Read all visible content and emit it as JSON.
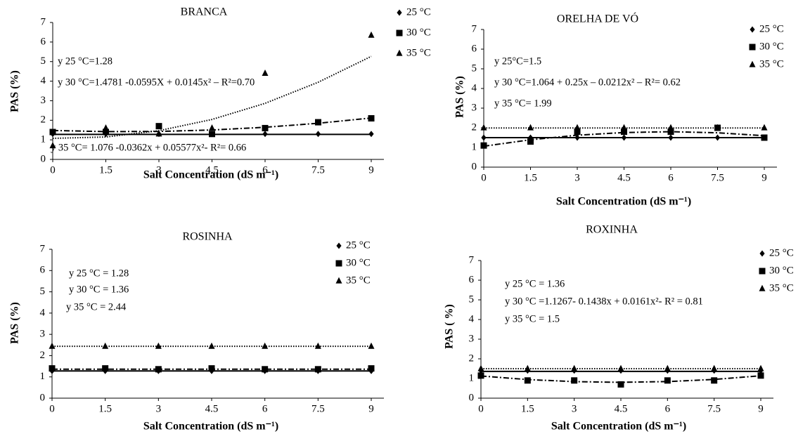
{
  "chart_data": [
    {
      "type": "scatter",
      "title": "BRANCA",
      "x_label": "Salt Concentration (dS m⁻¹)",
      "y_label": "PAS (%)",
      "x": [
        0,
        1.5,
        3,
        4.5,
        6,
        7.5,
        9
      ],
      "xlim": [
        0,
        9
      ],
      "xticks": [
        0,
        1.5,
        3,
        4.5,
        6,
        7.5,
        9
      ],
      "ylim": [
        0,
        7
      ],
      "yticks": [
        0,
        1,
        2,
        3,
        4,
        5,
        6,
        7
      ],
      "series": [
        {
          "name": "25 °C",
          "color": "#000000",
          "marker": "diamond",
          "line_style": "solid",
          "values": [
            1.3,
            1.3,
            1.3,
            1.3,
            1.3,
            1.3,
            1.3
          ],
          "fit": [
            1.28,
            1.28,
            1.28,
            1.28,
            1.28,
            1.28,
            1.28
          ]
        },
        {
          "name": "30 °C",
          "color": "#000000",
          "marker": "square",
          "line_style": "dashdot",
          "values": [
            1.4,
            1.4,
            1.7,
            1.3,
            1.6,
            1.9,
            2.1
          ],
          "fit": [
            1.478,
            1.421,
            1.43,
            1.504,
            1.643,
            1.847,
            2.117
          ]
        },
        {
          "name": "35 °C",
          "color": "#000000",
          "marker": "triangle",
          "line_style": "dotted",
          "values": [
            0.7,
            1.6,
            1.3,
            1.6,
            4.4,
            null,
            6.35
          ],
          "fit": [
            1.076,
            1.147,
            1.469,
            2.042,
            2.867,
            3.944,
            5.267
          ]
        }
      ],
      "annotations": [
        "y 25 °C=1.28",
        "y 30 °C=1.4781 -0.0595X + 0.0145x² – R²=0.70",
        "y 35 °C= 1.076 -0.0362x + 0.05577x²- R²= 0.66"
      ]
    },
    {
      "type": "scatter",
      "title": "ORELHA DE VÓ",
      "x_label": "Salt Concentration (dS m⁻¹)",
      "y_label": "PAS (%)",
      "x": [
        0,
        1.5,
        3,
        4.5,
        6,
        7.5,
        9
      ],
      "xlim": [
        0,
        9
      ],
      "xticks": [
        0,
        1.5,
        3,
        4.5,
        6,
        7.5,
        9
      ],
      "ylim": [
        0,
        7
      ],
      "yticks": [
        0,
        1,
        2,
        3,
        4,
        5,
        6,
        7
      ],
      "series": [
        {
          "name": "25 °C",
          "color": "#000000",
          "marker": "diamond",
          "line_style": "solid",
          "values": [
            1.5,
            1.5,
            1.5,
            1.5,
            1.5,
            1.5,
            1.5
          ],
          "fit": [
            1.5,
            1.5,
            1.5,
            1.5,
            1.5,
            1.5,
            1.5
          ]
        },
        {
          "name": "30 °C",
          "color": "#000000",
          "marker": "square",
          "line_style": "dashdot",
          "values": [
            1.1,
            1.3,
            1.8,
            1.8,
            1.8,
            2.0,
            1.5
          ],
          "fit": [
            1.064,
            1.391,
            1.623,
            1.76,
            1.801,
            1.747,
            1.597
          ]
        },
        {
          "name": "35 °C",
          "color": "#000000",
          "marker": "triangle",
          "line_style": "dotted",
          "values": [
            2.0,
            2.0,
            2.0,
            2.0,
            2.0,
            2.0,
            2.0
          ],
          "fit": [
            1.99,
            1.99,
            1.99,
            1.99,
            1.99,
            1.99,
            1.99
          ]
        }
      ],
      "annotations": [
        "y 25°C=1.5",
        "y 30 °C=1.064 + 0.25x – 0.0212x² – R²= 0.62",
        "y 35 °C= 1.99"
      ]
    },
    {
      "type": "scatter",
      "title": "ROSINHA",
      "x_label": "Salt Concentration (dS m⁻¹)",
      "y_label": "PAS (%)",
      "x": [
        0,
        1.5,
        3,
        4.5,
        6,
        7.5,
        9
      ],
      "xlim": [
        0,
        9
      ],
      "xticks": [
        0,
        1.5,
        3,
        4.5,
        6,
        7.5,
        9
      ],
      "ylim": [
        0,
        7
      ],
      "yticks": [
        0,
        1,
        2,
        3,
        4,
        5,
        6,
        7
      ],
      "series": [
        {
          "name": "25 °C",
          "color": "#000000",
          "marker": "diamond",
          "line_style": "solid",
          "values": [
            1.28,
            1.28,
            1.28,
            1.28,
            1.28,
            1.28,
            1.28
          ],
          "fit": [
            1.28,
            1.28,
            1.28,
            1.28,
            1.28,
            1.28,
            1.28
          ]
        },
        {
          "name": "30 °C",
          "color": "#000000",
          "marker": "square",
          "line_style": "dashdot",
          "values": [
            1.4,
            1.4,
            1.36,
            1.4,
            1.36,
            1.36,
            1.4
          ],
          "fit": [
            1.36,
            1.36,
            1.36,
            1.36,
            1.36,
            1.36,
            1.36
          ]
        },
        {
          "name": "35 °C",
          "color": "#000000",
          "marker": "triangle",
          "line_style": "dotted",
          "values": [
            2.44,
            2.44,
            2.44,
            2.44,
            2.44,
            2.44,
            2.44
          ],
          "fit": [
            2.44,
            2.44,
            2.44,
            2.44,
            2.44,
            2.44,
            2.44
          ]
        }
      ],
      "annotations": [
        "y 25  °C = 1.28",
        "y 30  °C = 1.36",
        "y 35  °C = 2.44"
      ]
    },
    {
      "type": "scatter",
      "title": "ROXINHA",
      "x_label": "Salt Concentration (dS m⁻¹)",
      "y_label": "PAS ( %)",
      "x": [
        0,
        1.5,
        3,
        4.5,
        6,
        7.5,
        9
      ],
      "xlim": [
        0,
        9
      ],
      "xticks": [
        0,
        1.5,
        3,
        4.5,
        6,
        7.5,
        9
      ],
      "ylim": [
        0,
        7
      ],
      "yticks": [
        0,
        1,
        2,
        3,
        4,
        5,
        6,
        7
      ],
      "series": [
        {
          "name": "25 °C",
          "color": "#000000",
          "marker": "diamond",
          "line_style": "solid",
          "values": [
            1.4,
            1.4,
            1.4,
            1.4,
            1.4,
            1.4,
            1.4
          ],
          "fit": [
            1.36,
            1.36,
            1.36,
            1.36,
            1.36,
            1.36,
            1.36
          ]
        },
        {
          "name": "30 °C",
          "color": "#000000",
          "marker": "square",
          "line_style": "dashdot",
          "values": [
            1.15,
            0.9,
            0.9,
            0.7,
            0.9,
            0.9,
            1.15
          ],
          "fit": [
            1.127,
            0.947,
            0.841,
            0.806,
            0.844,
            0.954,
            1.138
          ]
        },
        {
          "name": "35 °C",
          "color": "#000000",
          "marker": "triangle",
          "line_style": "dotted",
          "values": [
            1.5,
            1.5,
            1.5,
            1.5,
            1.5,
            1.5,
            1.5
          ],
          "fit": [
            1.5,
            1.5,
            1.5,
            1.5,
            1.5,
            1.5,
            1.5
          ]
        }
      ],
      "annotations": [
        "y 25  °C = 1.36",
        "y 30  °C =1.1267- 0.1438x + 0.0161x²- R² = 0.81",
        "y 35  °C = 1.5"
      ]
    }
  ]
}
